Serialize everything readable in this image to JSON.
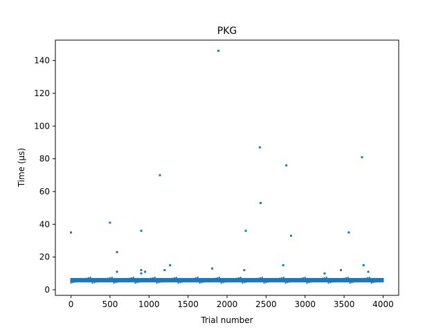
{
  "chart_data": {
    "type": "scatter",
    "title": "PKG",
    "xlabel": "Trial number",
    "ylabel": "Time (µs)",
    "xlim": [
      -200,
      4200
    ],
    "ylim": [
      -3.4,
      152.5
    ],
    "xticks": [
      0,
      500,
      1000,
      1500,
      2000,
      2500,
      3000,
      3500,
      4000
    ],
    "yticks": [
      0,
      20,
      40,
      60,
      80,
      100,
      120,
      140
    ],
    "grid": false,
    "marker_color": "#1f77b4",
    "baseline_band": {
      "x_range": [
        0,
        4000
      ],
      "y_range": [
        4.5,
        7.2
      ]
    },
    "outliers": [
      {
        "x": 0,
        "y": 35
      },
      {
        "x": 500,
        "y": 41
      },
      {
        "x": 590,
        "y": 23
      },
      {
        "x": 590,
        "y": 11
      },
      {
        "x": 900,
        "y": 36
      },
      {
        "x": 900,
        "y": 12
      },
      {
        "x": 900,
        "y": 10
      },
      {
        "x": 950,
        "y": 11
      },
      {
        "x": 1140,
        "y": 70
      },
      {
        "x": 1200,
        "y": 12
      },
      {
        "x": 1270,
        "y": 15
      },
      {
        "x": 1810,
        "y": 13
      },
      {
        "x": 1890,
        "y": 146
      },
      {
        "x": 2220,
        "y": 12
      },
      {
        "x": 2240,
        "y": 36
      },
      {
        "x": 2420,
        "y": 87
      },
      {
        "x": 2430,
        "y": 53
      },
      {
        "x": 2720,
        "y": 15
      },
      {
        "x": 2760,
        "y": 76
      },
      {
        "x": 2820,
        "y": 33
      },
      {
        "x": 3250,
        "y": 10
      },
      {
        "x": 3460,
        "y": 12
      },
      {
        "x": 3560,
        "y": 35
      },
      {
        "x": 3730,
        "y": 81
      },
      {
        "x": 3750,
        "y": 15
      },
      {
        "x": 3810,
        "y": 11
      }
    ]
  }
}
